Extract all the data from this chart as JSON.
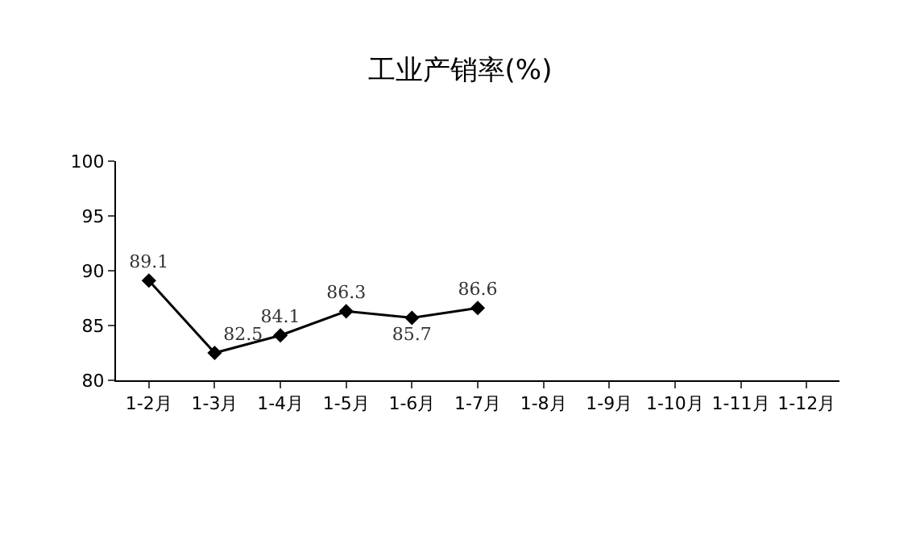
{
  "chart_data": {
    "type": "line",
    "title": "工业产销率(%)",
    "categories": [
      "1-2月",
      "1-3月",
      "1-4月",
      "1-5月",
      "1-6月",
      "1-7月",
      "1-8月",
      "1-9月",
      "1-10月",
      "1-11月",
      "1-12月"
    ],
    "series": [
      {
        "color": "#000000",
        "values": [
          89.1,
          82.5,
          84.1,
          86.3,
          85.7,
          86.6,
          null,
          null,
          null,
          null,
          null
        ]
      }
    ],
    "ylim": [
      80,
      100
    ],
    "yticks": [
      80,
      85,
      90,
      95,
      100
    ],
    "marker": "diamond",
    "line_style": "solid",
    "data_labels": true
  }
}
